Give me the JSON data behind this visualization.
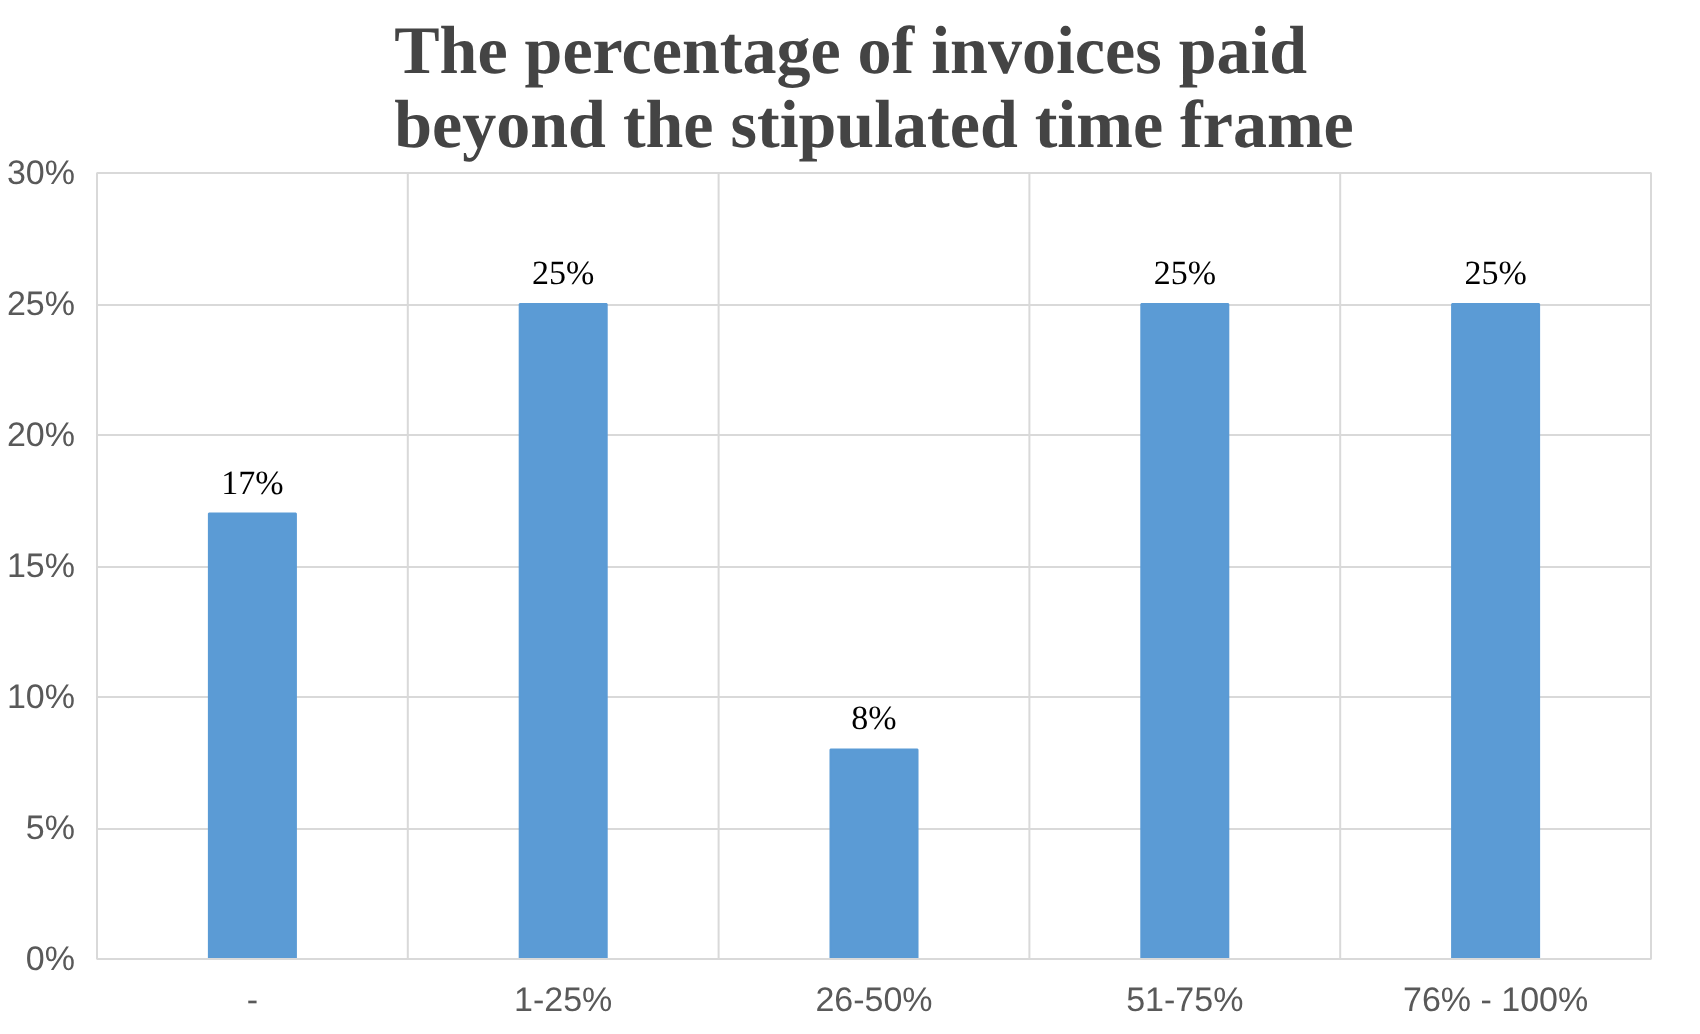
{
  "chart_data": {
    "type": "bar",
    "title": "The percentage of invoices paid beyond the stipulated time frame",
    "categories": [
      "-",
      "1-25%",
      "26-50%",
      "51-75%",
      "76% - 100%"
    ],
    "values": [
      17,
      25,
      8,
      25,
      25
    ],
    "color": "#5b9bd5",
    "value_labels": [
      "17%",
      "25%",
      "8%",
      "25%",
      "25%"
    ],
    "ylim": [
      0,
      30
    ],
    "yticks": [
      {
        "value": 0,
        "label": "0%"
      },
      {
        "value": 5,
        "label": "5%"
      },
      {
        "value": 10,
        "label": "10%"
      },
      {
        "value": 15,
        "label": "15%"
      },
      {
        "value": 20,
        "label": "20%"
      },
      {
        "value": 25,
        "label": "25%"
      },
      {
        "value": 30,
        "label": "30%"
      }
    ],
    "grid": true
  }
}
